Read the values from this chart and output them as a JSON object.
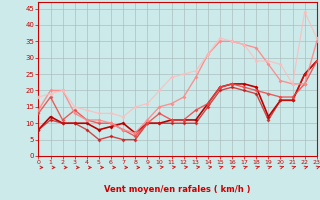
{
  "xlabel": "Vent moyen/en rafales ( km/h )",
  "xlim": [
    0,
    23
  ],
  "ylim": [
    0,
    47
  ],
  "yticks": [
    0,
    5,
    10,
    15,
    20,
    25,
    30,
    35,
    40,
    45
  ],
  "xticks": [
    0,
    1,
    2,
    3,
    4,
    5,
    6,
    7,
    8,
    9,
    10,
    11,
    12,
    13,
    14,
    15,
    16,
    17,
    18,
    19,
    20,
    21,
    22,
    23
  ],
  "background_color": "#cceaea",
  "grid_color": "#aabbbb",
  "series": [
    {
      "x": [
        0,
        1,
        2,
        3,
        4,
        5,
        6,
        7,
        8,
        9,
        10,
        11,
        12,
        13,
        14,
        15,
        16,
        17,
        18,
        19,
        20,
        21,
        22,
        23
      ],
      "y": [
        8,
        12,
        10,
        10,
        10,
        8,
        9,
        10,
        7,
        10,
        10,
        11,
        11,
        11,
        16,
        21,
        22,
        22,
        21,
        12,
        17,
        17,
        25,
        29
      ],
      "color": "#bb0000",
      "marker": "D",
      "markersize": 2,
      "linewidth": 1.2,
      "alpha": 1.0
    },
    {
      "x": [
        0,
        1,
        2,
        3,
        4,
        5,
        6,
        7,
        8,
        9,
        10,
        11,
        12,
        13,
        14,
        15,
        16,
        17,
        18,
        19,
        20,
        21,
        22,
        23
      ],
      "y": [
        8,
        11,
        10,
        10,
        8,
        5,
        6,
        5,
        5,
        10,
        10,
        10,
        10,
        10,
        15,
        20,
        21,
        20,
        19,
        11,
        17,
        17,
        25,
        29
      ],
      "color": "#cc1111",
      "marker": "D",
      "markersize": 2,
      "linewidth": 1.0,
      "alpha": 0.75
    },
    {
      "x": [
        0,
        1,
        2,
        3,
        4,
        5,
        6,
        7,
        8,
        9,
        10,
        11,
        12,
        13,
        14,
        15,
        16,
        17,
        18,
        19,
        20,
        21,
        22,
        23
      ],
      "y": [
        13,
        18,
        11,
        14,
        11,
        10,
        10,
        8,
        6,
        10,
        13,
        11,
        11,
        14,
        16,
        21,
        22,
        21,
        20,
        19,
        18,
        18,
        22,
        29
      ],
      "color": "#ee4444",
      "marker": "D",
      "markersize": 2,
      "linewidth": 1.0,
      "alpha": 0.85
    },
    {
      "x": [
        0,
        1,
        2,
        3,
        4,
        5,
        6,
        7,
        8,
        9,
        10,
        11,
        12,
        13,
        14,
        15,
        16,
        17,
        18,
        19,
        20,
        21,
        22,
        23
      ],
      "y": [
        14,
        20,
        20,
        13,
        11,
        11,
        10,
        8,
        7,
        11,
        15,
        16,
        18,
        24,
        31,
        35,
        35,
        34,
        33,
        28,
        23,
        22,
        22,
        35
      ],
      "color": "#ff8888",
      "marker": "D",
      "markersize": 2,
      "linewidth": 1.0,
      "alpha": 0.9
    },
    {
      "x": [
        0,
        1,
        2,
        3,
        4,
        5,
        6,
        7,
        8,
        9,
        10,
        11,
        12,
        13,
        14,
        15,
        16,
        17,
        18,
        19,
        20,
        21,
        22,
        23
      ],
      "y": [
        18,
        19,
        20,
        15,
        14,
        13,
        13,
        12,
        15,
        16,
        20,
        24,
        25,
        26,
        31,
        36,
        35,
        34,
        29,
        29,
        28,
        22,
        44,
        36
      ],
      "color": "#ffbbbb",
      "marker": "D",
      "markersize": 2,
      "linewidth": 0.9,
      "alpha": 0.8
    }
  ],
  "arrow_angles_low": 0,
  "arrow_angles_mid": 30,
  "arrow_angles_high": 50,
  "arrow_color": "#cc2222"
}
